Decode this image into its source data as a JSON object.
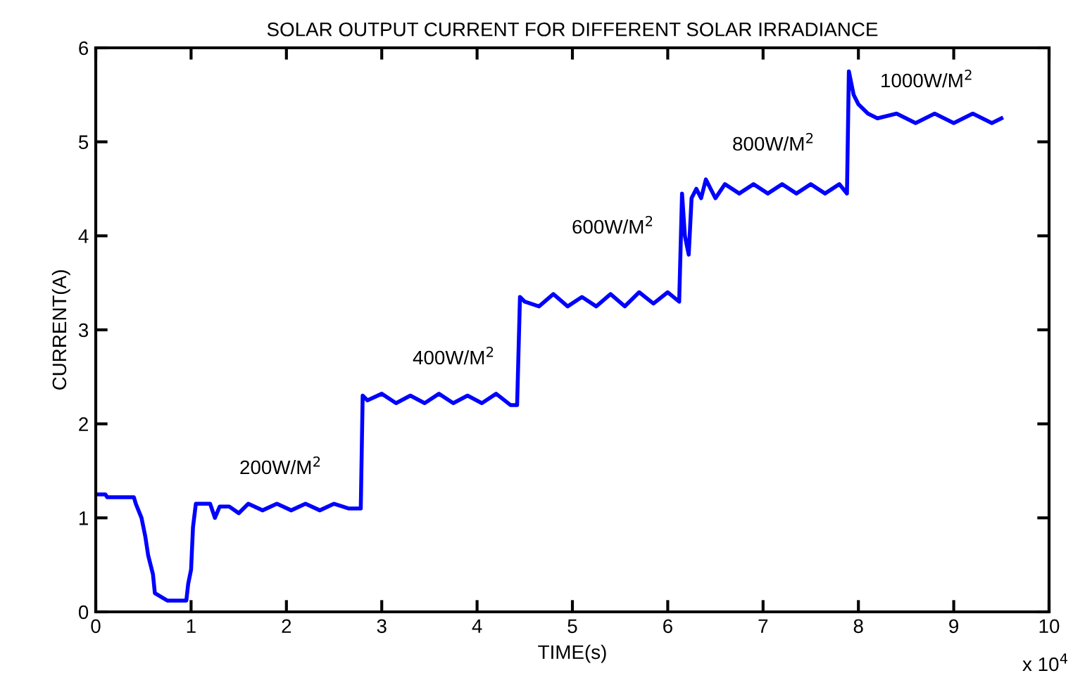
{
  "chart_data": {
    "type": "line",
    "title": "SOLAR OUTPUT CURRENT FOR DIFFERENT SOLAR IRRADIANCE",
    "xlabel": "TIME(s)",
    "ylabel": "CURRENT(A)",
    "xlim": [
      0,
      10
    ],
    "ylim": [
      0,
      6
    ],
    "xticks": [
      0,
      1,
      2,
      3,
      4,
      5,
      6,
      7,
      8,
      9,
      10
    ],
    "yticks": [
      0,
      1,
      2,
      3,
      4,
      5,
      6
    ],
    "grid": false,
    "marker": "none",
    "line_style": "solid",
    "series": [
      {
        "color": "#0000ff",
        "x": [
          0,
          0.1,
          0.12,
          0.4,
          0.42,
          0.48,
          0.52,
          0.55,
          0.6,
          0.62,
          0.7,
          0.75,
          0.95,
          0.97,
          1.0,
          1.02,
          1.05,
          1.2,
          1.25,
          1.3,
          1.4,
          1.5,
          1.6,
          1.75,
          1.9,
          2.05,
          2.2,
          2.35,
          2.5,
          2.65,
          2.78,
          2.8,
          2.85,
          3.0,
          3.15,
          3.3,
          3.45,
          3.6,
          3.75,
          3.9,
          4.05,
          4.2,
          4.35,
          4.42,
          4.45,
          4.5,
          4.65,
          4.8,
          4.95,
          5.1,
          5.25,
          5.4,
          5.55,
          5.7,
          5.85,
          6.0,
          6.12,
          6.15,
          6.18,
          6.22,
          6.25,
          6.3,
          6.35,
          6.4,
          6.5,
          6.6,
          6.75,
          6.9,
          7.05,
          7.2,
          7.35,
          7.5,
          7.65,
          7.8,
          7.88,
          7.9,
          7.95,
          8.0,
          8.1,
          8.2,
          8.4,
          8.6,
          8.8,
          9.0,
          9.2,
          9.4,
          9.5
        ],
        "values": [
          1.25,
          1.25,
          1.22,
          1.22,
          1.15,
          1.0,
          0.8,
          0.6,
          0.4,
          0.2,
          0.15,
          0.12,
          0.12,
          0.3,
          0.45,
          0.9,
          1.15,
          1.15,
          1.0,
          1.12,
          1.12,
          1.05,
          1.15,
          1.08,
          1.15,
          1.08,
          1.15,
          1.08,
          1.15,
          1.1,
          1.1,
          2.3,
          2.25,
          2.32,
          2.22,
          2.3,
          2.22,
          2.32,
          2.22,
          2.3,
          2.22,
          2.32,
          2.2,
          2.2,
          3.35,
          3.3,
          3.25,
          3.38,
          3.25,
          3.35,
          3.25,
          3.38,
          3.25,
          3.4,
          3.28,
          3.4,
          3.3,
          4.45,
          4.0,
          3.8,
          4.4,
          4.5,
          4.4,
          4.6,
          4.4,
          4.55,
          4.45,
          4.55,
          4.45,
          4.55,
          4.45,
          4.55,
          4.45,
          4.55,
          4.45,
          5.75,
          5.5,
          5.4,
          5.3,
          5.25,
          5.3,
          5.2,
          5.3,
          5.2,
          5.3,
          5.2,
          5.25
        ]
      }
    ],
    "annotations": [
      "200W/M$^{2}$",
      "400W/M$^{2}$",
      "600W/M$^{2}$",
      "800W/M$^{2}$",
      "1000W/M$^{2}$",
      "x 10$^{4}$"
    ]
  }
}
